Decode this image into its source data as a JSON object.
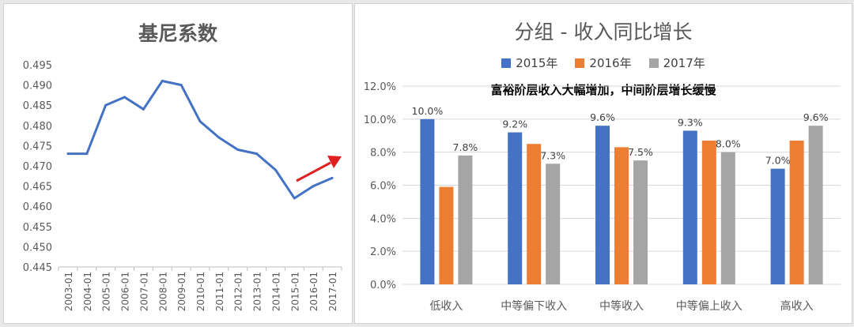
{
  "chart_data": [
    {
      "type": "line",
      "title": "基尼系数",
      "categories": [
        "2003-01",
        "2004-01",
        "2005-01",
        "2006-01",
        "2007-01",
        "2008-01",
        "2009-01",
        "2010-01",
        "2011-01",
        "2012-01",
        "2013-01",
        "2014-01",
        "2015-01",
        "2016-01",
        "2017-01"
      ],
      "series": [
        {
          "values": [
            0.473,
            0.473,
            0.485,
            0.487,
            0.484,
            0.491,
            0.49,
            0.481,
            0.477,
            0.474,
            0.473,
            0.469,
            0.462,
            0.465,
            0.467
          ]
        }
      ],
      "ylim": [
        0.445,
        0.495
      ],
      "y_ticks": [
        "0.445",
        "0.450",
        "0.455",
        "0.460",
        "0.465",
        "0.470",
        "0.475",
        "0.480",
        "0.485",
        "0.490",
        "0.495"
      ],
      "grid": false,
      "line_color": "#4472c4",
      "arrow_color": "#e02020"
    },
    {
      "type": "bar",
      "title": "分组 - 收入同比增长",
      "annotation": "富裕阶层收入大幅增加，中间阶层增长缓慢",
      "categories": [
        "低收入",
        "中等偏下收入",
        "中等收入",
        "中等偏上收入",
        "高收入"
      ],
      "series": [
        {
          "name": "2015年",
          "color": "#4472c4",
          "values": [
            10.0,
            9.2,
            9.6,
            9.3,
            7.0
          ],
          "labels": [
            "10.0%",
            "9.2%",
            "9.6%",
            "9.3%",
            "7.0%"
          ]
        },
        {
          "name": "2016年",
          "color": "#ed7d31",
          "values": [
            5.9,
            8.5,
            8.3,
            8.7,
            8.7
          ],
          "labels": []
        },
        {
          "name": "2017年",
          "color": "#a5a5a5",
          "values": [
            7.8,
            7.3,
            7.5,
            8.0,
            9.6
          ],
          "labels": [
            "7.8%",
            "7.3%",
            "7.5%",
            "8.0%",
            "9.6%"
          ]
        }
      ],
      "ylim": [
        0,
        12
      ],
      "y_ticks": [
        "0.0%",
        "2.0%",
        "4.0%",
        "6.0%",
        "8.0%",
        "10.0%",
        "12.0%"
      ],
      "grid": true,
      "legend": "top"
    }
  ]
}
